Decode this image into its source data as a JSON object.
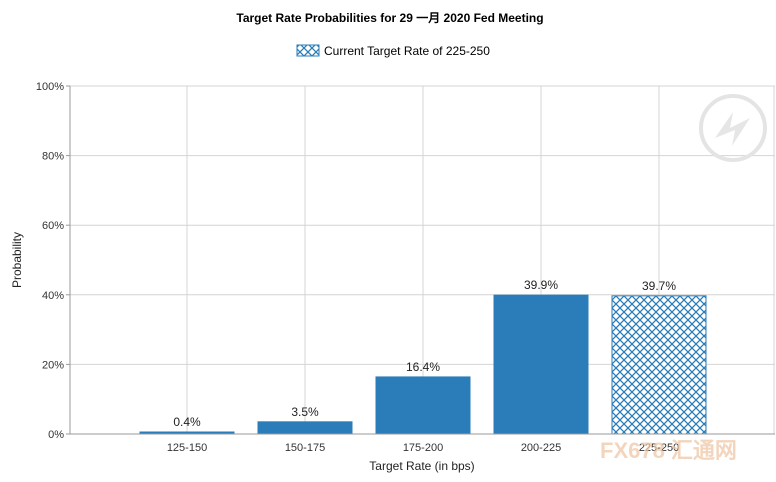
{
  "chart_data": {
    "type": "bar",
    "title": "Target Rate Probabilities for 29 一月 2020 Fed Meeting",
    "legend": {
      "label": "Current Target Rate of 225-250",
      "placement": "top-center"
    },
    "xlabel": "Target Rate (in bps)",
    "ylabel": "Probability",
    "categories": [
      "125-150",
      "150-175",
      "175-200",
      "200-225",
      "225-250"
    ],
    "values": [
      0.4,
      3.5,
      16.4,
      39.9,
      39.7
    ],
    "data_labels": [
      "0.4%",
      "3.5%",
      "16.4%",
      "39.9%",
      "39.7%"
    ],
    "highlight_category": "225-250",
    "ylim": [
      0,
      100
    ],
    "yticks": [
      0,
      20,
      40,
      60,
      80,
      100
    ],
    "ytick_labels": [
      "0%",
      "20%",
      "40%",
      "60%",
      "80%",
      "100%"
    ],
    "grid": true,
    "colors": {
      "bar": "#2a7db8",
      "hatch": "#2a7db8",
      "grid": "#d4d4d4",
      "axis": "#9a9a9a"
    }
  },
  "watermark": {
    "text": "FX678 汇通网"
  }
}
